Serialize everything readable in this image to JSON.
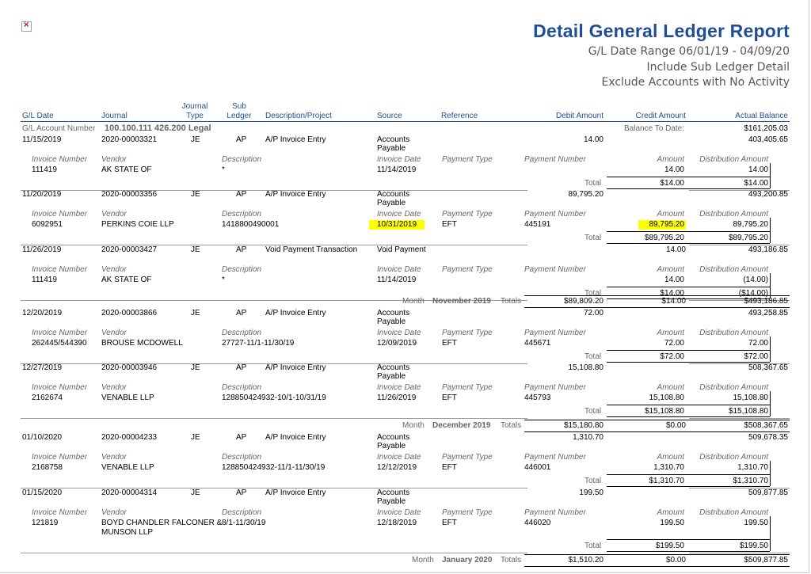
{
  "report": {
    "title": "Detail General Ledger Report",
    "subtitle": [
      "G/L Date Range 06/01/19 - 04/09/20",
      "Include Sub Ledger Detail",
      "Exclude Accounts with No Activity"
    ]
  },
  "columns": {
    "gl_date": "G/L Date",
    "journal": "Journal",
    "journal_type": [
      "Journal",
      "Type"
    ],
    "sub_ledger": [
      "Sub",
      "Ledger"
    ],
    "description": "Description/Project",
    "source": "Source",
    "reference": "Reference",
    "debit": "Debit Amount",
    "credit": "Credit Amount",
    "balance": "Actual Balance"
  },
  "account": {
    "label": "G/L Account Number",
    "number": "100.100.111 426.200 Legal",
    "btd_label": "Balance To Date:",
    "btd_value": "$161,205.03"
  },
  "sub_labels": {
    "invoice_number": "Invoice Number",
    "vendor": "Vendor",
    "description": "Description",
    "invoice_date": "Invoice Date",
    "payment_type": "Payment Type",
    "payment_number": "Payment Number",
    "amount": "Amount",
    "distribution_amount": "Distribution Amount",
    "total": "Total"
  },
  "entries": [
    {
      "date": "11/15/2019",
      "journal": "2020-00003321",
      "type": "JE",
      "sub": "AP",
      "desc": "A/P Invoice Entry",
      "source": [
        "Accounts",
        "Payable"
      ],
      "debit": "14.00",
      "credit": "",
      "balance": "403,405.65",
      "inv": "111419",
      "vendor": "AK STATE OF",
      "vendor2": "",
      "idesc": "*",
      "idate": "11/14/2019",
      "ptype": "",
      "pnum": "",
      "amount": "14.00",
      "dist": "14.00",
      "total_amt": "$14.00",
      "total_dist": "$14.00"
    },
    {
      "date": "11/20/2019",
      "journal": "2020-00003356",
      "type": "JE",
      "sub": "AP",
      "desc": "A/P Invoice Entry",
      "source": [
        "Accounts",
        "Payable"
      ],
      "debit": "89,795.20",
      "credit": "",
      "balance": "493,200.85",
      "inv": "6092951",
      "vendor": "PERKINS COIE LLP",
      "vendor2": "",
      "idesc": "1418800490001",
      "idate": "10/31/2019",
      "ptype": "EFT",
      "pnum": "445191",
      "amount": "89,795.20",
      "dist": "89,795.20",
      "total_amt": "$89,795.20",
      "total_dist": "$89,795.20"
    },
    {
      "date": "11/26/2019",
      "journal": "2020-00003427",
      "type": "JE",
      "sub": "AP",
      "desc": "Void Payment Transaction",
      "source": [
        "Void Payment",
        ""
      ],
      "debit": "",
      "credit": "14.00",
      "balance": "493,186.85",
      "inv": "111419",
      "vendor": "AK STATE OF",
      "vendor2": "",
      "idesc": "*",
      "idate": "11/14/2019",
      "ptype": "",
      "pnum": "",
      "amount": "14.00",
      "dist": "(14.00)",
      "total_amt": "$14.00",
      "total_dist": "($14.00)"
    },
    {
      "date": "12/20/2019",
      "journal": "2020-00003866",
      "type": "JE",
      "sub": "AP",
      "desc": "A/P Invoice Entry",
      "source": [
        "Accounts",
        "Payable"
      ],
      "debit": "72.00",
      "credit": "",
      "balance": "493,258.85",
      "inv": "262445/544390",
      "vendor": "BROUSE MCDOWELL",
      "vendor2": "",
      "idesc": "27727-11/1-11/30/19",
      "idate": "12/09/2019",
      "ptype": "EFT",
      "pnum": "445671",
      "amount": "72.00",
      "dist": "72.00",
      "total_amt": "$72.00",
      "total_dist": "$72.00"
    },
    {
      "date": "12/27/2019",
      "journal": "2020-00003946",
      "type": "JE",
      "sub": "AP",
      "desc": "A/P Invoice Entry",
      "source": [
        "Accounts",
        "Payable"
      ],
      "debit": "15,108.80",
      "credit": "",
      "balance": "508,367.65",
      "inv": "2162674",
      "vendor": "VENABLE LLP",
      "vendor2": "",
      "idesc": "128850424932-10/1-10/31/19",
      "idate": "11/26/2019",
      "ptype": "EFT",
      "pnum": "445793",
      "amount": "15,108.80",
      "dist": "15,108.80",
      "total_amt": "$15,108.80",
      "total_dist": "$15,108.80"
    },
    {
      "date": "01/10/2020",
      "journal": "2020-00004233",
      "type": "JE",
      "sub": "AP",
      "desc": "A/P Invoice Entry",
      "source": [
        "Accounts",
        "Payable"
      ],
      "debit": "1,310.70",
      "credit": "",
      "balance": "509,678.35",
      "inv": "2168758",
      "vendor": "VENABLE LLP",
      "vendor2": "",
      "idesc": "128850424932-11/1-11/30/19",
      "idate": "12/12/2019",
      "ptype": "EFT",
      "pnum": "446001",
      "amount": "1,310.70",
      "dist": "1,310.70",
      "total_amt": "$1,310.70",
      "total_dist": "$1,310.70"
    },
    {
      "date": "01/15/2020",
      "journal": "2020-00004314",
      "type": "JE",
      "sub": "AP",
      "desc": "A/P Invoice Entry",
      "source": [
        "Accounts",
        "Payable"
      ],
      "debit": "199.50",
      "credit": "",
      "balance": "509,877.85",
      "inv": "121819",
      "vendor": "BOYD CHANDLER FALCONER &",
      "vendor2": "MUNSON LLP",
      "idesc": "8/1-11/30/19",
      "idate": "12/18/2019",
      "ptype": "EFT",
      "pnum": "446020",
      "amount": "199.50",
      "dist": "199.50",
      "total_amt": "$199.50",
      "total_dist": "$199.50"
    }
  ],
  "month_totals": [
    {
      "month_label": "Month",
      "month": "November 2019",
      "totals_label": "Totals",
      "debit": "$89,809.20",
      "credit": "$14.00",
      "balance": "$493,186.85"
    },
    {
      "month_label": "Month",
      "month": "December 2019",
      "totals_label": "Totals",
      "debit": "$15,180.80",
      "credit": "$0.00",
      "balance": "$508,367.65"
    },
    {
      "month_label": "Month",
      "month": "January 2020",
      "totals_label": "Totals",
      "debit": "$1,510.20",
      "credit": "$0.00",
      "balance": "$509,877.85"
    }
  ],
  "highlight_color": "#ffff00",
  "title_color": "#1f4e96"
}
